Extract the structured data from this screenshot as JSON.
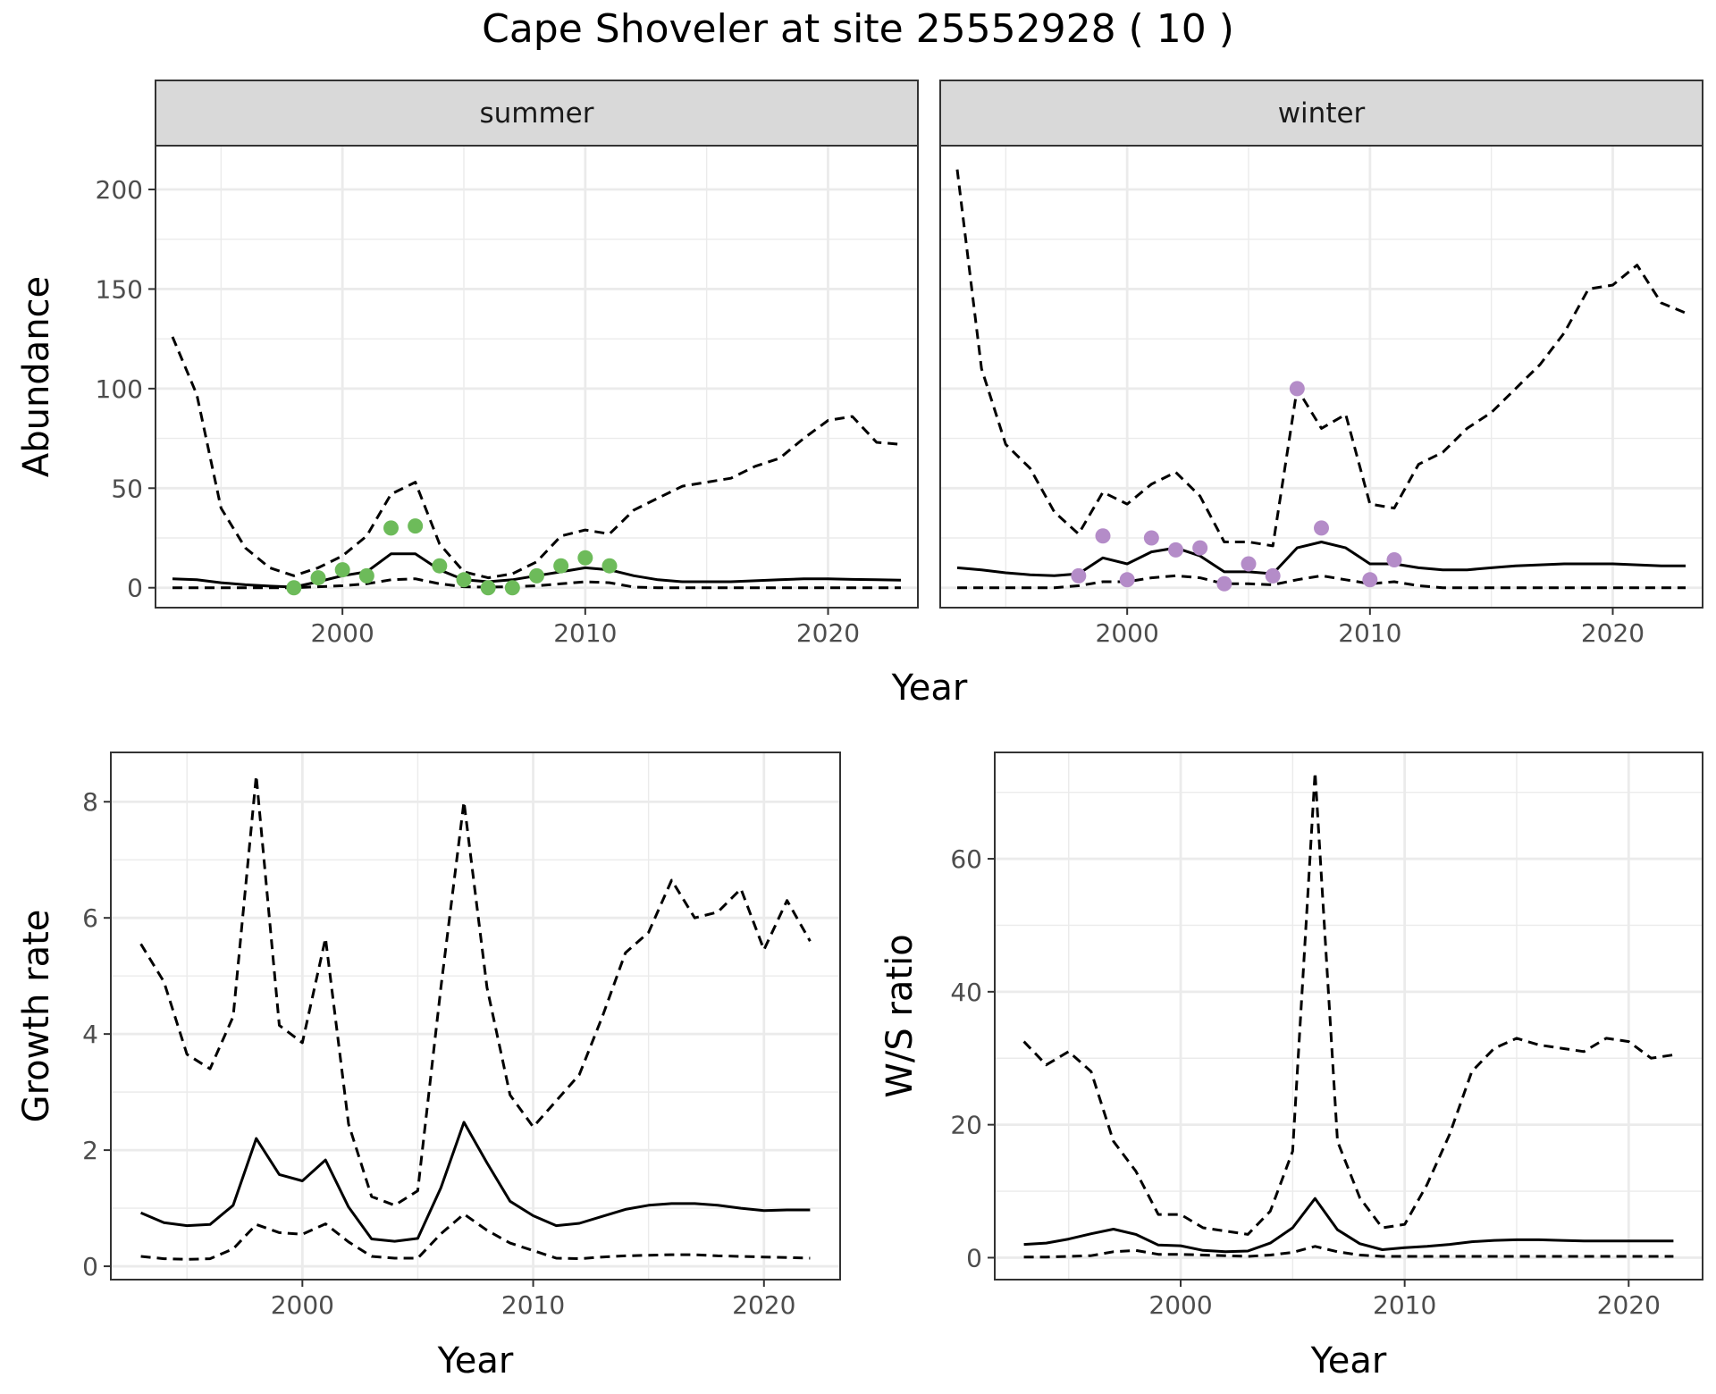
{
  "title": "Cape Shoveler at site 25552928 ( 10 )",
  "colors": {
    "summer_points": "#6dbb5a",
    "winter_points": "#b48cc8",
    "grid": "#ebebeb",
    "strip_bg": "#d9d9d9",
    "line": "#000000"
  },
  "chart_data": [
    {
      "id": "abundance-summer",
      "type": "line",
      "facet": "summer",
      "xlabel": "Year",
      "ylabel": "Abundance",
      "xlim": [
        1992.3,
        2023.7
      ],
      "ylim": [
        -10,
        222
      ],
      "xticks": [
        2000,
        2010,
        2020
      ],
      "yticks": [
        0,
        50,
        100,
        150,
        200
      ],
      "grid": true,
      "series": [
        {
          "style": "solid",
          "x": [
            1993,
            1994,
            1995,
            1996,
            1997,
            1998,
            1999,
            2000,
            2001,
            2002,
            2003,
            2004,
            2005,
            2006,
            2007,
            2008,
            2009,
            2010,
            2011,
            2012,
            2013,
            2014,
            2015,
            2016,
            2017,
            2018,
            2019,
            2020,
            2021,
            2022,
            2023
          ],
          "y": [
            4.5,
            4,
            2.5,
            1.5,
            0.8,
            0.3,
            3,
            6,
            8,
            17,
            17,
            9,
            4,
            3,
            4,
            6,
            8,
            10,
            9,
            6,
            4,
            3,
            3,
            3,
            3.5,
            4,
            4.5,
            4.5,
            4.2,
            4,
            3.8
          ]
        },
        {
          "style": "dashed",
          "x": [
            1993,
            1994,
            1995,
            1996,
            1997,
            1998,
            1999,
            2000,
            2001,
            2002,
            2003,
            2004,
            2005,
            2006,
            2007,
            2008,
            2009,
            2010,
            2011,
            2012,
            2013,
            2014,
            2015,
            2016,
            2017,
            2018,
            2019,
            2020,
            2021,
            2022,
            2023
          ],
          "y": [
            126,
            97,
            40,
            20,
            10,
            6,
            10,
            16,
            26,
            47,
            53,
            22,
            8,
            5,
            7,
            13,
            26,
            29,
            27,
            39,
            45,
            51,
            53,
            55,
            61,
            65,
            75,
            84,
            86,
            73,
            72
          ]
        },
        {
          "style": "dashed",
          "x": [
            1993,
            1994,
            1995,
            1996,
            1997,
            1998,
            1999,
            2000,
            2001,
            2002,
            2003,
            2004,
            2005,
            2006,
            2007,
            2008,
            2009,
            2010,
            2011,
            2012,
            2013,
            2014,
            2015,
            2016,
            2017,
            2018,
            2019,
            2020,
            2021,
            2022,
            2023
          ],
          "y": [
            0,
            0,
            0,
            0,
            0,
            0,
            0.5,
            1,
            2,
            4,
            4.5,
            2,
            0.5,
            0.3,
            0.5,
            1,
            2,
            3,
            2.5,
            0.3,
            0,
            0,
            0,
            0,
            0,
            0,
            0,
            0,
            0,
            0,
            0
          ]
        }
      ],
      "points": {
        "x": [
          1998,
          1999,
          2000,
          2001,
          2002,
          2003,
          2004,
          2005,
          2006,
          2007,
          2008,
          2009,
          2010,
          2011
        ],
        "y": [
          0,
          5,
          9,
          6,
          30,
          31,
          11,
          4,
          0,
          0,
          6,
          11,
          15,
          11
        ]
      }
    },
    {
      "id": "abundance-winter",
      "type": "line",
      "facet": "winter",
      "xlabel": "Year",
      "ylabel": "Abundance",
      "xlim": [
        1992.3,
        2023.7
      ],
      "ylim": [
        -10,
        222
      ],
      "xticks": [
        2000,
        2010,
        2020
      ],
      "yticks": [
        0,
        50,
        100,
        150,
        200
      ],
      "grid": true,
      "series": [
        {
          "style": "solid",
          "x": [
            1993,
            1994,
            1995,
            1996,
            1997,
            1998,
            1999,
            2000,
            2001,
            2002,
            2003,
            2004,
            2005,
            2006,
            2007,
            2008,
            2009,
            2010,
            2011,
            2012,
            2013,
            2014,
            2015,
            2016,
            2017,
            2018,
            2019,
            2020,
            2021,
            2022,
            2023
          ],
          "y": [
            10,
            9,
            7.5,
            6.5,
            6,
            7,
            15,
            12,
            18,
            20,
            16,
            8,
            8,
            7,
            20,
            23,
            20,
            12,
            12,
            10,
            9,
            9,
            10,
            11,
            11.5,
            12,
            12,
            12,
            11.5,
            11,
            11
          ]
        },
        {
          "style": "dashed",
          "x": [
            1993,
            1994,
            1995,
            1996,
            1997,
            1998,
            1999,
            2000,
            2001,
            2002,
            2003,
            2004,
            2005,
            2006,
            2007,
            2008,
            2009,
            2010,
            2011,
            2012,
            2013,
            2014,
            2015,
            2016,
            2017,
            2018,
            2019,
            2020,
            2021,
            2022,
            2023
          ],
          "y": [
            210,
            110,
            72,
            60,
            38,
            27,
            48,
            42,
            52,
            58,
            46,
            23,
            23,
            21,
            100,
            80,
            87,
            42,
            40,
            62,
            68,
            80,
            88,
            100,
            112,
            128,
            150,
            152,
            162,
            143,
            138
          ]
        },
        {
          "style": "dashed",
          "x": [
            1993,
            1994,
            1995,
            1996,
            1997,
            1998,
            1999,
            2000,
            2001,
            2002,
            2003,
            2004,
            2005,
            2006,
            2007,
            2008,
            2009,
            2010,
            2011,
            2012,
            2013,
            2014,
            2015,
            2016,
            2017,
            2018,
            2019,
            2020,
            2021,
            2022,
            2023
          ],
          "y": [
            0,
            0,
            0,
            0,
            0,
            1,
            3,
            3,
            5,
            6,
            5,
            2,
            2,
            1.5,
            4,
            6,
            4,
            2,
            3,
            1,
            0,
            0,
            0,
            0,
            0,
            0,
            0,
            0,
            0,
            0,
            0
          ]
        }
      ],
      "points": {
        "x": [
          1998,
          1999,
          2000,
          2001,
          2002,
          2003,
          2004,
          2005,
          2006,
          2007,
          2008,
          2010,
          2011
        ],
        "y": [
          6,
          26,
          4,
          25,
          19,
          20,
          2,
          12,
          6,
          100,
          30,
          4,
          14
        ]
      }
    },
    {
      "id": "growth-rate",
      "type": "line",
      "xlabel": "Year",
      "ylabel": "Growth rate",
      "xlim": [
        1991.7,
        2023.3
      ],
      "ylim": [
        -0.23,
        8.85
      ],
      "xticks": [
        2000,
        2010,
        2020
      ],
      "yticks": [
        0,
        2,
        4,
        6,
        8
      ],
      "grid": true,
      "series": [
        {
          "style": "solid",
          "x": [
            1993,
            1994,
            1995,
            1996,
            1997,
            1998,
            1999,
            2000,
            2001,
            2002,
            2003,
            2004,
            2005,
            2006,
            2007,
            2008,
            2009,
            2010,
            2011,
            2012,
            2013,
            2014,
            2015,
            2016,
            2017,
            2018,
            2019,
            2020,
            2021,
            2022
          ],
          "y": [
            0.92,
            0.75,
            0.7,
            0.72,
            1.05,
            2.2,
            1.58,
            1.47,
            1.83,
            1.02,
            0.47,
            0.43,
            0.48,
            1.35,
            2.48,
            1.78,
            1.12,
            0.87,
            0.7,
            0.74,
            0.86,
            0.98,
            1.05,
            1.08,
            1.08,
            1.05,
            1.0,
            0.96,
            0.97,
            0.97
          ]
        },
        {
          "style": "dashed",
          "x": [
            1993,
            1994,
            1995,
            1996,
            1997,
            1998,
            1999,
            2000,
            2001,
            2002,
            2003,
            2004,
            2005,
            2006,
            2007,
            2008,
            2009,
            2010,
            2011,
            2012,
            2013,
            2014,
            2015,
            2016,
            2017,
            2018,
            2019,
            2020,
            2021,
            2022
          ],
          "y": [
            5.55,
            4.9,
            3.65,
            3.4,
            4.3,
            8.45,
            4.15,
            3.85,
            5.65,
            2.45,
            1.2,
            1.05,
            1.3,
            4.8,
            8.0,
            4.8,
            2.95,
            2.4,
            2.85,
            3.3,
            4.3,
            5.4,
            5.75,
            6.65,
            6.0,
            6.1,
            6.5,
            5.45,
            6.3,
            5.6
          ]
        },
        {
          "style": "dashed",
          "x": [
            1993,
            1994,
            1995,
            1996,
            1997,
            1998,
            1999,
            2000,
            2001,
            2002,
            2003,
            2004,
            2005,
            2006,
            2007,
            2008,
            2009,
            2010,
            2011,
            2012,
            2013,
            2014,
            2015,
            2016,
            2017,
            2018,
            2019,
            2020,
            2021,
            2022
          ],
          "y": [
            0.17,
            0.13,
            0.12,
            0.13,
            0.3,
            0.72,
            0.58,
            0.55,
            0.73,
            0.42,
            0.17,
            0.14,
            0.14,
            0.56,
            0.9,
            0.62,
            0.4,
            0.27,
            0.14,
            0.13,
            0.16,
            0.18,
            0.19,
            0.2,
            0.2,
            0.18,
            0.17,
            0.16,
            0.15,
            0.14
          ]
        }
      ]
    },
    {
      "id": "ws-ratio",
      "type": "line",
      "xlabel": "Year",
      "ylabel": "W/S ratio",
      "xlim": [
        1991.7,
        2023.3
      ],
      "ylim": [
        -3.3,
        76
      ],
      "xticks": [
        2000,
        2010,
        2020
      ],
      "yticks": [
        0,
        20,
        40,
        60
      ],
      "grid": true,
      "series": [
        {
          "style": "solid",
          "x": [
            1993,
            1994,
            1995,
            1996,
            1997,
            1998,
            1999,
            2000,
            2001,
            2002,
            2003,
            2004,
            2005,
            2006,
            2007,
            2008,
            2009,
            2010,
            2011,
            2012,
            2013,
            2014,
            2015,
            2016,
            2017,
            2018,
            2019,
            2020,
            2021,
            2022
          ],
          "y": [
            2,
            2.2,
            2.8,
            3.6,
            4.3,
            3.5,
            1.9,
            1.8,
            1.1,
            0.9,
            1.0,
            2.2,
            4.5,
            8.9,
            4.2,
            2.1,
            1.2,
            1.5,
            1.7,
            2.0,
            2.4,
            2.6,
            2.7,
            2.7,
            2.6,
            2.5,
            2.5,
            2.5,
            2.5,
            2.5
          ]
        },
        {
          "style": "dashed",
          "x": [
            1993,
            1994,
            1995,
            1996,
            1997,
            1998,
            1999,
            2000,
            2001,
            2002,
            2003,
            2004,
            2005,
            2006,
            2007,
            2008,
            2009,
            2010,
            2011,
            2012,
            2013,
            2014,
            2015,
            2016,
            2017,
            2018,
            2019,
            2020,
            2021,
            2022
          ],
          "y": [
            32.5,
            29,
            31,
            28,
            17.5,
            13,
            6.5,
            6.5,
            4.5,
            4,
            3.5,
            7,
            16,
            73,
            17.5,
            9,
            4.5,
            5,
            11,
            18.5,
            28,
            31.5,
            33,
            32,
            31.5,
            31,
            33,
            32.5,
            30,
            30.5
          ]
        },
        {
          "style": "dashed",
          "x": [
            1993,
            1994,
            1995,
            1996,
            1997,
            1998,
            1999,
            2000,
            2001,
            2002,
            2003,
            2004,
            2005,
            2006,
            2007,
            2008,
            2009,
            2010,
            2011,
            2012,
            2013,
            2014,
            2015,
            2016,
            2017,
            2018,
            2019,
            2020,
            2021,
            2022
          ],
          "y": [
            0.1,
            0.1,
            0.2,
            0.3,
            0.9,
            1.1,
            0.5,
            0.5,
            0.4,
            0.3,
            0.2,
            0.4,
            0.8,
            1.7,
            0.9,
            0.4,
            0.2,
            0.2,
            0.2,
            0.2,
            0.2,
            0.2,
            0.2,
            0.2,
            0.2,
            0.2,
            0.2,
            0.2,
            0.2,
            0.2
          ]
        }
      ]
    }
  ],
  "shared_xlabel_top": "Year"
}
